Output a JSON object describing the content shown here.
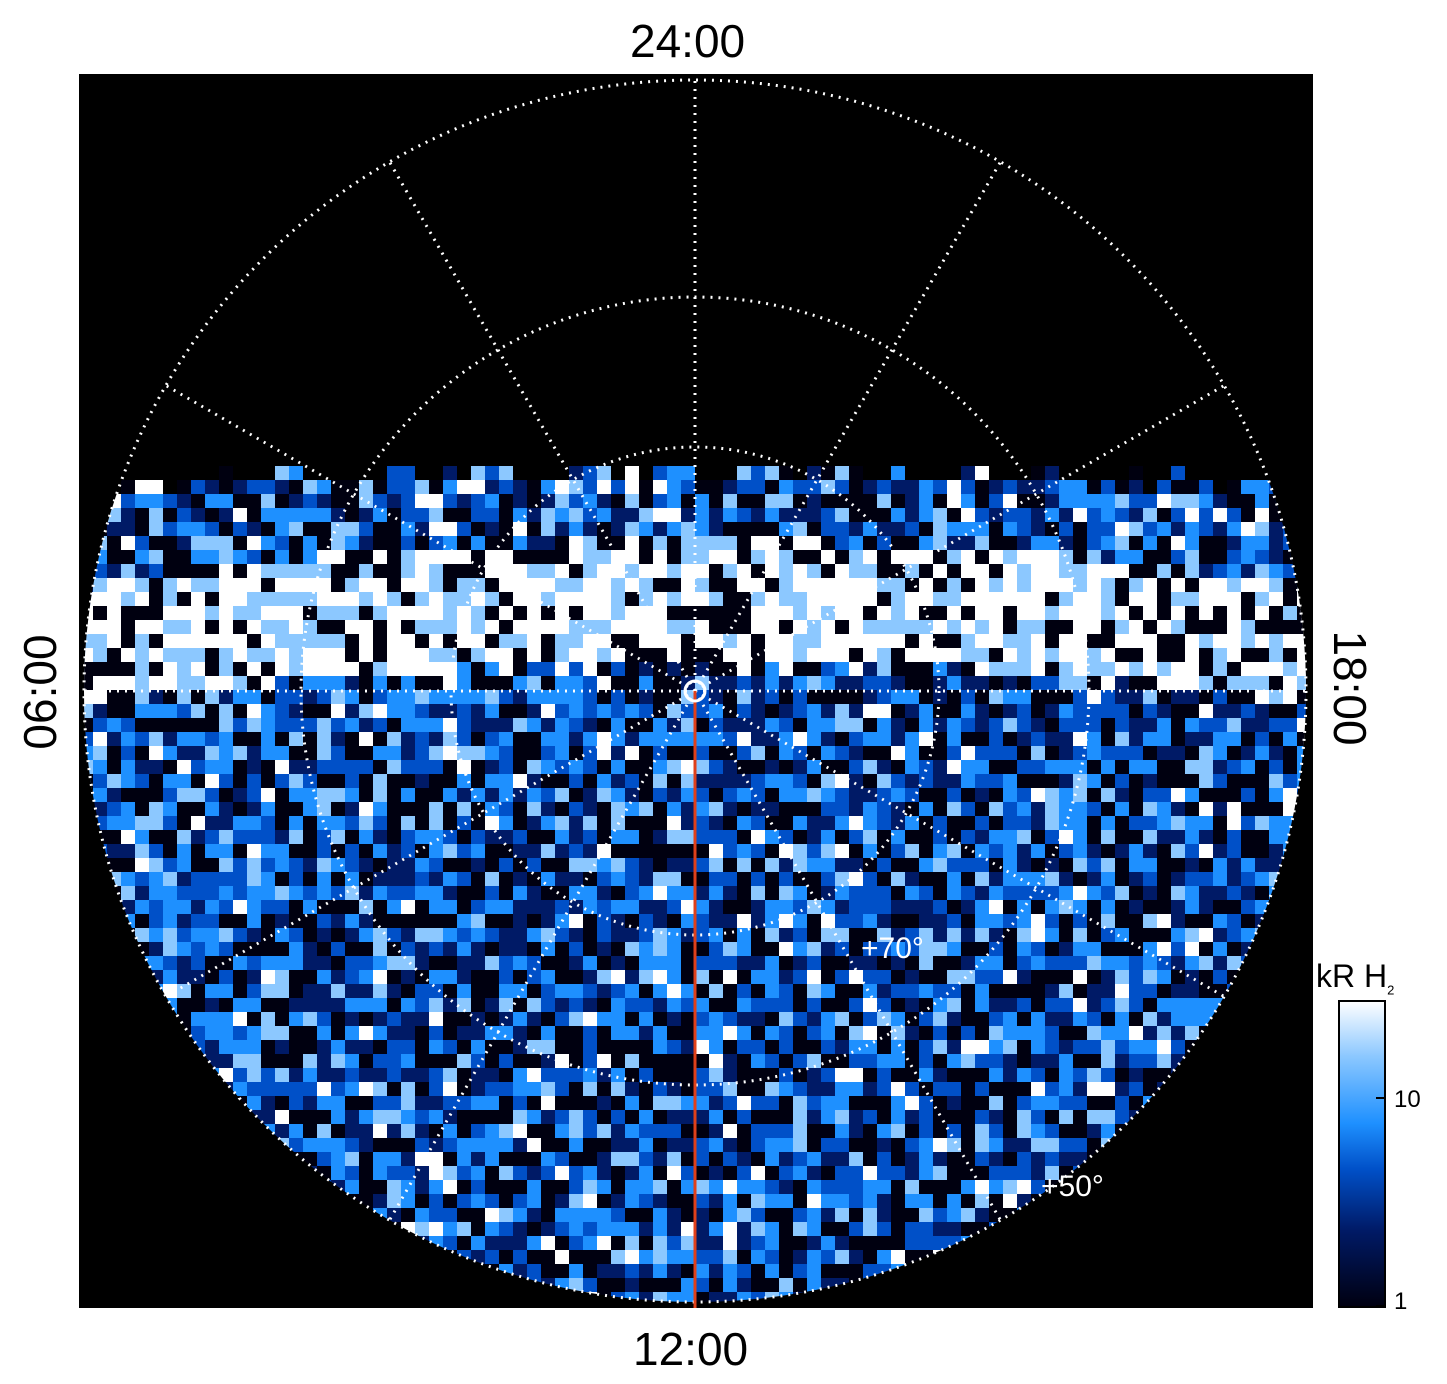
{
  "labels": {
    "top": "24:00",
    "bottom": "12:00",
    "left": "06:00",
    "right": "18:00"
  },
  "latitude_labels": [
    "+70°",
    "+50°"
  ],
  "colorbar": {
    "title_main": "kR H",
    "title_sub": "2",
    "ticks": [
      "10",
      "1"
    ],
    "colors": [
      "#000010",
      "#001a66",
      "#0050c8",
      "#1e90ff",
      "#8cc8ff",
      "#ffffff"
    ]
  },
  "colors": {
    "background": "#000000",
    "grid": "#ffffff",
    "meridian": "#e0401a"
  }
}
